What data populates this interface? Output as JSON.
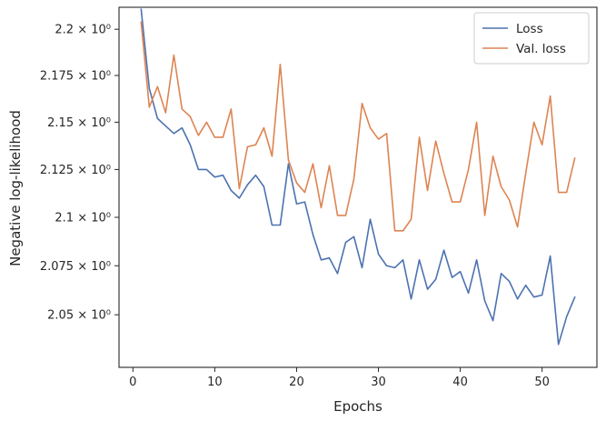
{
  "chart_data": {
    "type": "line",
    "xlabel": "Epochs",
    "ylabel": "Negative log-likelihood",
    "xlim": [
      -1.7,
      56.7
    ],
    "ylim": [
      2.0235,
      2.212
    ],
    "y_scale": "log",
    "x_ticks": [
      0,
      10,
      20,
      30,
      40,
      50
    ],
    "y_ticks": [
      2.05,
      2.075,
      2.1,
      2.125,
      2.15,
      2.175,
      2.2
    ],
    "y_tick_labels": [
      "2.05 × 10⁰",
      "2.075 × 10⁰",
      "2.1 × 10⁰",
      "2.125 × 10⁰",
      "2.15 × 10⁰",
      "2.175 × 10⁰",
      "2.2 × 10⁰"
    ],
    "grid": false,
    "legend_position": "top-right",
    "x": [
      1,
      2,
      3,
      4,
      5,
      6,
      7,
      8,
      9,
      10,
      11,
      12,
      13,
      14,
      15,
      16,
      17,
      18,
      19,
      20,
      21,
      22,
      23,
      24,
      25,
      26,
      27,
      28,
      29,
      30,
      31,
      32,
      33,
      34,
      35,
      36,
      37,
      38,
      39,
      40,
      41,
      42,
      43,
      44,
      45,
      46,
      47,
      48,
      49,
      50,
      51,
      52,
      53,
      54
    ],
    "series": [
      {
        "name": "Loss",
        "color": "#4c72b0",
        "values": [
          2.211,
          2.168,
          2.152,
          2.148,
          2.144,
          2.147,
          2.138,
          2.125,
          2.125,
          2.121,
          2.122,
          2.114,
          2.11,
          2.117,
          2.122,
          2.116,
          2.096,
          2.096,
          2.128,
          2.107,
          2.108,
          2.091,
          2.078,
          2.079,
          2.071,
          2.087,
          2.09,
          2.074,
          2.099,
          2.081,
          2.075,
          2.074,
          2.078,
          2.058,
          2.078,
          2.063,
          2.068,
          2.083,
          2.069,
          2.072,
          2.061,
          2.078,
          2.057,
          2.047,
          2.071,
          2.067,
          2.058,
          2.065,
          2.059,
          2.06,
          2.08,
          2.035,
          2.049,
          2.059
        ]
      },
      {
        "name": "Val. loss",
        "color": "#dd8452",
        "values": [
          2.204,
          2.158,
          2.169,
          2.155,
          2.186,
          2.157,
          2.153,
          2.143,
          2.15,
          2.142,
          2.142,
          2.157,
          2.115,
          2.137,
          2.138,
          2.147,
          2.132,
          2.181,
          2.13,
          2.118,
          2.113,
          2.128,
          2.105,
          2.127,
          2.101,
          2.101,
          2.12,
          2.16,
          2.147,
          2.141,
          2.144,
          2.093,
          2.093,
          2.099,
          2.142,
          2.114,
          2.14,
          2.123,
          2.108,
          2.108,
          2.125,
          2.15,
          2.101,
          2.132,
          2.116,
          2.109,
          2.095,
          2.123,
          2.15,
          2.138,
          2.164,
          2.113,
          2.113,
          2.131
        ]
      }
    ]
  }
}
